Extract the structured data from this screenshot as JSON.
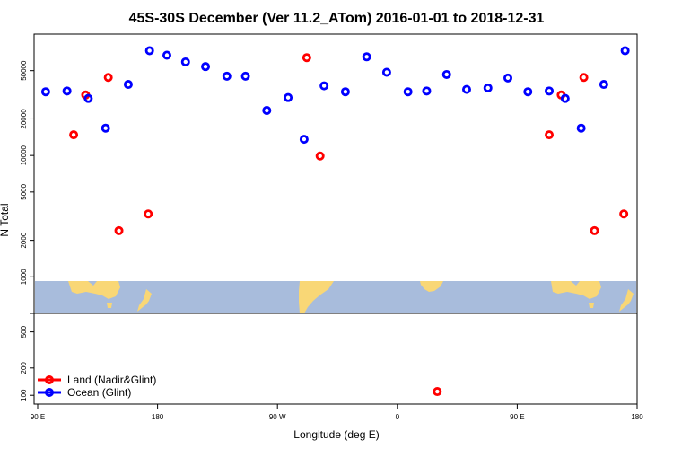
{
  "chart_data": {
    "type": "scatter",
    "title": "45S-30S December (Ver 11.2_ATom)   2016-01-01 to 2018-12-31",
    "xlabel": "Longitude (deg E)",
    "ylabel": "N Total",
    "xlim": [
      90,
      540
    ],
    "y_scale": "log",
    "x_ticks": [
      {
        "value": 90,
        "label": "90 E"
      },
      {
        "value": 180,
        "label": "180"
      },
      {
        "value": 270,
        "label": "90 W"
      },
      {
        "value": 360,
        "label": "0"
      },
      {
        "value": 450,
        "label": "90 E"
      },
      {
        "value": 540,
        "label": "180"
      }
    ],
    "upper_panel": {
      "ylim": [
        500,
        100000
      ],
      "y_ticks": [
        1000,
        2000,
        5000,
        10000,
        20000,
        50000
      ]
    },
    "lower_panel": {
      "ylim": [
        80,
        800
      ],
      "y_ticks": [
        100,
        200,
        500
      ]
    },
    "series": [
      {
        "name": "Land (Nadir&Glint)",
        "color": "#ff0000",
        "points": [
          {
            "lon": 117,
            "y": 14800
          },
          {
            "lon": 126,
            "y": 31500
          },
          {
            "lon": 143,
            "y": 44000
          },
          {
            "lon": 151,
            "y": 2400
          },
          {
            "lon": 173,
            "y": 3300
          },
          {
            "lon": 292,
            "y": 64000
          },
          {
            "lon": 302,
            "y": 9900
          },
          {
            "lon": 390,
            "y": 110
          },
          {
            "lon": 474,
            "y": 14800
          },
          {
            "lon": 483,
            "y": 31500
          },
          {
            "lon": 500,
            "y": 44000
          },
          {
            "lon": 508,
            "y": 2400
          },
          {
            "lon": 530,
            "y": 3300
          }
        ]
      },
      {
        "name": "Ocean (Glint)",
        "color": "#0000ff",
        "points": [
          {
            "lon": 96,
            "y": 33500
          },
          {
            "lon": 112,
            "y": 34000
          },
          {
            "lon": 128,
            "y": 29500
          },
          {
            "lon": 141,
            "y": 16800
          },
          {
            "lon": 158,
            "y": 38500
          },
          {
            "lon": 174,
            "y": 73000
          },
          {
            "lon": 187,
            "y": 67000
          },
          {
            "lon": 201,
            "y": 59000
          },
          {
            "lon": 216,
            "y": 54000
          },
          {
            "lon": 232,
            "y": 45000
          },
          {
            "lon": 246,
            "y": 45000
          },
          {
            "lon": 262,
            "y": 23500
          },
          {
            "lon": 278,
            "y": 30000
          },
          {
            "lon": 290,
            "y": 13600
          },
          {
            "lon": 305,
            "y": 37500
          },
          {
            "lon": 321,
            "y": 33500
          },
          {
            "lon": 337,
            "y": 65000
          },
          {
            "lon": 352,
            "y": 48500
          },
          {
            "lon": 368,
            "y": 33500
          },
          {
            "lon": 382,
            "y": 34000
          },
          {
            "lon": 397,
            "y": 46500
          },
          {
            "lon": 412,
            "y": 35000
          },
          {
            "lon": 428,
            "y": 36000
          },
          {
            "lon": 443,
            "y": 43500
          },
          {
            "lon": 458,
            "y": 33500
          },
          {
            "lon": 474,
            "y": 34000
          },
          {
            "lon": 486,
            "y": 29500
          },
          {
            "lon": 498,
            "y": 16800
          },
          {
            "lon": 515,
            "y": 38500
          },
          {
            "lon": 531,
            "y": 73000
          }
        ]
      }
    ],
    "legend": {
      "position": "bottom-left",
      "entries": [
        "Land (Nadir&Glint)",
        "Ocean (Glint)"
      ]
    },
    "map_strip": {
      "ocean_color": "#a8bcdc",
      "land_color": "#f9d776"
    }
  }
}
